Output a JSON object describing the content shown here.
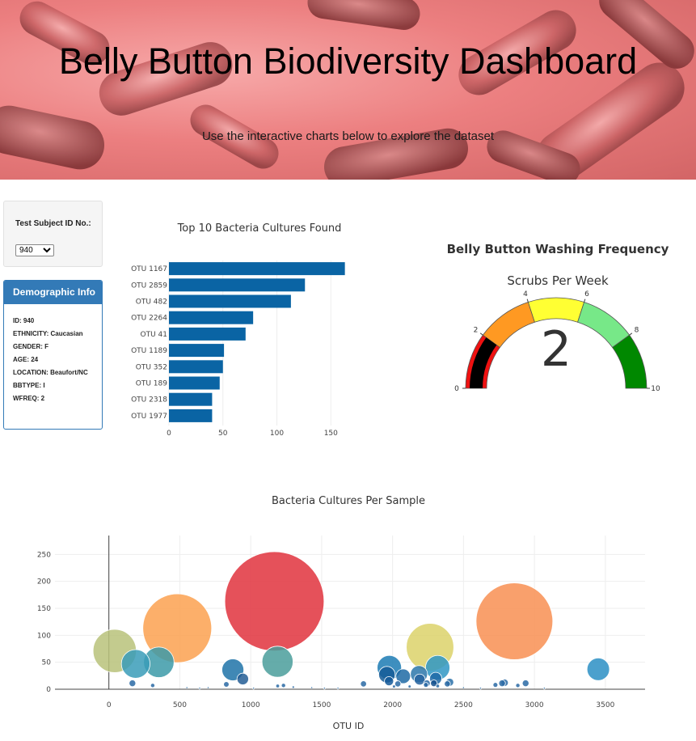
{
  "header": {
    "title": "Belly Button Biodiversity Dashboard",
    "subtitle": "Use the interactive charts below to explore the dataset"
  },
  "selector": {
    "label": "Test Subject ID No.:",
    "selected": "940"
  },
  "demographics": {
    "title": "Demographic Info",
    "rows": [
      "ID: 940",
      "ETHNICITY: Caucasian",
      "GENDER: F",
      "AGE: 24",
      "LOCATION: Beaufort/NC",
      "BBTYPE: I",
      "WFREQ: 2"
    ]
  },
  "colors": {
    "bar": "#0a64a4",
    "panel": "#337ab7",
    "gauge_zones": [
      "#ee1111",
      "#ff9922",
      "#ffff33",
      "#77e888",
      "#008800"
    ],
    "gauge_value": "#000000"
  },
  "chart_data": [
    {
      "type": "bar",
      "title": "Top 10 Bacteria Cultures Found",
      "orientation": "horizontal",
      "categories": [
        "OTU 1167",
        "OTU 2859",
        "OTU 482",
        "OTU 2264",
        "OTU 41",
        "OTU 1189",
        "OTU 352",
        "OTU 189",
        "OTU 2318",
        "OTU 1977"
      ],
      "values": [
        163,
        126,
        113,
        78,
        71,
        51,
        50,
        47,
        40,
        40
      ],
      "xlim": [
        0,
        170
      ],
      "xticks": [
        "0",
        "50",
        "100",
        "150"
      ]
    },
    {
      "type": "gauge",
      "title": "Belly Button Washing Frequency",
      "subtitle": "Scrubs Per Week",
      "value": 2,
      "value_label": "2",
      "range": [
        0,
        10
      ],
      "ticks": [
        "0",
        "2",
        "4",
        "6",
        "8",
        "10"
      ],
      "zones": [
        [
          0,
          2
        ],
        [
          2,
          4
        ],
        [
          4,
          6
        ],
        [
          6,
          8
        ],
        [
          8,
          10
        ]
      ]
    },
    {
      "type": "scatter",
      "title": "Bacteria Cultures Per Sample",
      "xlabel": "OTU ID",
      "xlim": [
        -380,
        3780
      ],
      "ylim": [
        0,
        285
      ],
      "xticks": [
        "0",
        "500",
        "1000",
        "1500",
        "2000",
        "2500",
        "3000",
        "3500"
      ],
      "yticks": [
        "0",
        "50",
        "100",
        "150",
        "200",
        "250"
      ],
      "grid": true,
      "points": [
        {
          "x": 1167,
          "y": 163,
          "color": "#e0333d"
        },
        {
          "x": 2859,
          "y": 126,
          "color": "#f88f52"
        },
        {
          "x": 482,
          "y": 113,
          "color": "#fca150"
        },
        {
          "x": 2264,
          "y": 78,
          "color": "#dcd26a"
        },
        {
          "x": 41,
          "y": 71,
          "color": "#b9c27a"
        },
        {
          "x": 1189,
          "y": 51,
          "color": "#4a9e9b"
        },
        {
          "x": 352,
          "y": 50,
          "color": "#3c9aa8"
        },
        {
          "x": 189,
          "y": 47,
          "color": "#3a9cb8"
        },
        {
          "x": 2318,
          "y": 40,
          "color": "#2f96c4"
        },
        {
          "x": 1977,
          "y": 40,
          "color": "#1c7bb4"
        },
        {
          "x": 3450,
          "y": 37,
          "color": "#2b8fc4"
        },
        {
          "x": 874,
          "y": 36,
          "color": "#1f73a8"
        },
        {
          "x": 2186,
          "y": 28,
          "color": "#2c77aa"
        },
        {
          "x": 1960,
          "y": 27,
          "color": "#155c96"
        },
        {
          "x": 2075,
          "y": 24,
          "color": "#1f6aa4"
        },
        {
          "x": 944,
          "y": 19,
          "color": "#245e95"
        },
        {
          "x": 2191,
          "y": 18,
          "color": "#2764a0"
        },
        {
          "x": 2304,
          "y": 20,
          "color": "#1e69a6"
        },
        {
          "x": 1975,
          "y": 15,
          "color": "#155b9a"
        },
        {
          "x": 2403,
          "y": 13,
          "color": "#2970a8"
        },
        {
          "x": 2291,
          "y": 11,
          "color": "#15508c"
        },
        {
          "x": 2790,
          "y": 12,
          "color": "#2a6aa4"
        },
        {
          "x": 2772,
          "y": 11,
          "color": "#2a6aa4"
        },
        {
          "x": 2938,
          "y": 11,
          "color": "#2a6aa4"
        },
        {
          "x": 166,
          "y": 11,
          "color": "#2a6aa4"
        },
        {
          "x": 1795,
          "y": 10,
          "color": "#2a6aa4"
        },
        {
          "x": 2037,
          "y": 10,
          "color": "#2a6aa4"
        },
        {
          "x": 2242,
          "y": 11,
          "color": "#2a6aa4"
        },
        {
          "x": 2386,
          "y": 10,
          "color": "#2a6aa4"
        },
        {
          "x": 2235,
          "y": 8,
          "color": "#2a6aa4"
        },
        {
          "x": 2883,
          "y": 7,
          "color": "#2a6aa4"
        },
        {
          "x": 2725,
          "y": 8,
          "color": "#2a6aa4"
        },
        {
          "x": 1231,
          "y": 7,
          "color": "#2a6aa4"
        },
        {
          "x": 828,
          "y": 9,
          "color": "#2a6aa4"
        },
        {
          "x": 309,
          "y": 7,
          "color": "#2a6aa4"
        },
        {
          "x": 2318,
          "y": 6,
          "color": "#2a6aa4"
        },
        {
          "x": 1190,
          "y": 6,
          "color": "#2a6aa4"
        },
        {
          "x": 2010,
          "y": 5,
          "color": "#2a6aa4"
        },
        {
          "x": 2120,
          "y": 5,
          "color": "#2a6aa4"
        },
        {
          "x": 1300,
          "y": 4,
          "color": "#2a6aa4"
        },
        {
          "x": 1430,
          "y": 3,
          "color": "#2a6aa4"
        },
        {
          "x": 1520,
          "y": 2,
          "color": "#2a6aa4"
        },
        {
          "x": 2500,
          "y": 3,
          "color": "#2a6aa4"
        },
        {
          "x": 2620,
          "y": 2,
          "color": "#2a6aa4"
        },
        {
          "x": 3070,
          "y": 2,
          "color": "#2a6aa4"
        },
        {
          "x": 640,
          "y": 2,
          "color": "#2a6aa4"
        },
        {
          "x": 700,
          "y": 3,
          "color": "#2a6aa4"
        },
        {
          "x": 1020,
          "y": 2,
          "color": "#2a6aa4"
        },
        {
          "x": 1615,
          "y": 2,
          "color": "#2a6aa4"
        },
        {
          "x": 550,
          "y": 3,
          "color": "#2a6aa4"
        }
      ]
    }
  ]
}
